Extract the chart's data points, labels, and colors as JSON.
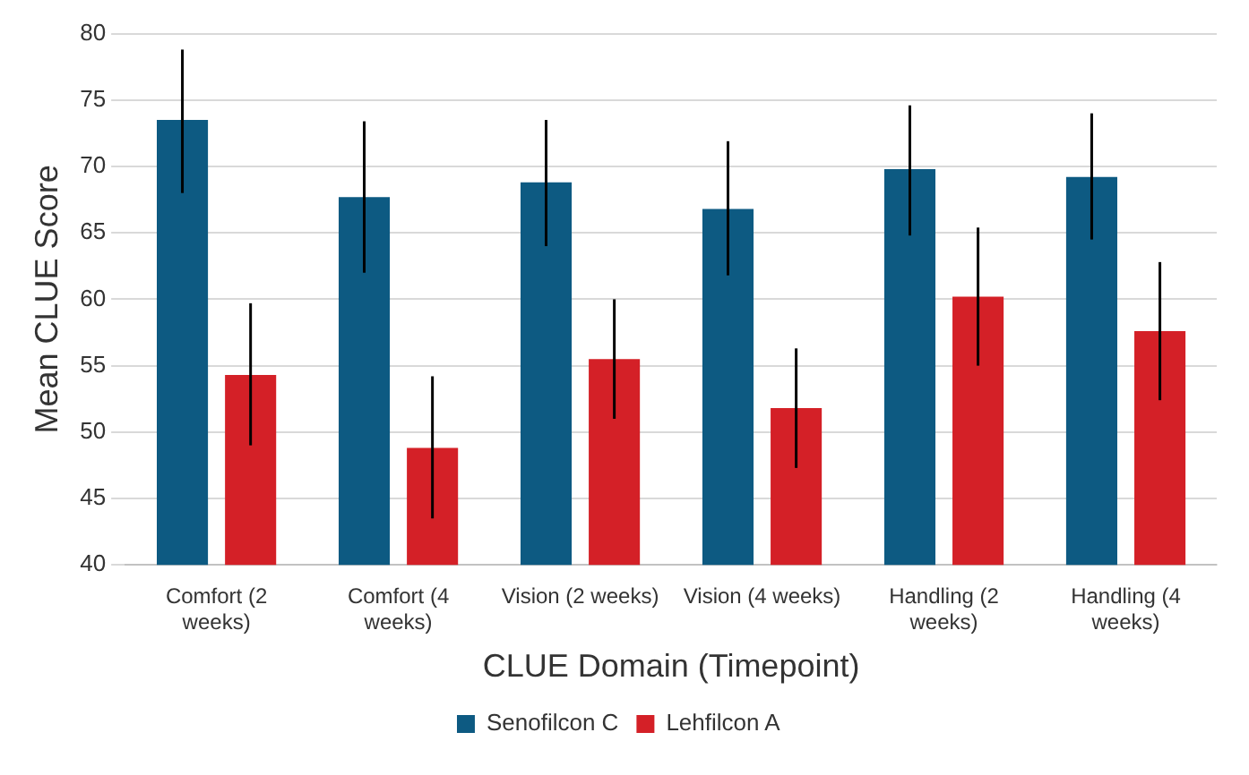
{
  "chart_data": {
    "type": "bar",
    "xlabel": "CLUE Domain (Timepoint)",
    "ylabel": "Mean CLUE Score",
    "categories": [
      "Comfort (2 weeks)",
      "Comfort (4 weeks)",
      "Vision (2 weeks)",
      "Vision (4 weeks)",
      "Handling (2 weeks)",
      "Handling (4 weeks)"
    ],
    "series": [
      {
        "name": "Senofilcon C",
        "color": "#0d5a82",
        "values": [
          73.5,
          67.7,
          68.8,
          66.8,
          69.8,
          69.2
        ],
        "errors": [
          [
            68,
            78.8
          ],
          [
            62,
            73.4
          ],
          [
            64,
            73.5
          ],
          [
            61.8,
            71.9
          ],
          [
            64.8,
            74.6
          ],
          [
            64.5,
            74
          ]
        ]
      },
      {
        "name": "Lehfilcon A",
        "color": "#d42027",
        "values": [
          54.3,
          48.8,
          55.5,
          51.8,
          60.2,
          57.6
        ],
        "errors": [
          [
            49,
            59.7
          ],
          [
            43.5,
            54.2
          ],
          [
            51,
            60
          ],
          [
            47.3,
            56.3
          ],
          [
            55,
            65.4
          ],
          [
            52.4,
            62.8
          ]
        ]
      }
    ],
    "ylim": [
      40,
      80
    ],
    "yticks": [
      40,
      45,
      50,
      55,
      60,
      65,
      70,
      75,
      80
    ],
    "grid": "y",
    "legend": "bottom"
  }
}
